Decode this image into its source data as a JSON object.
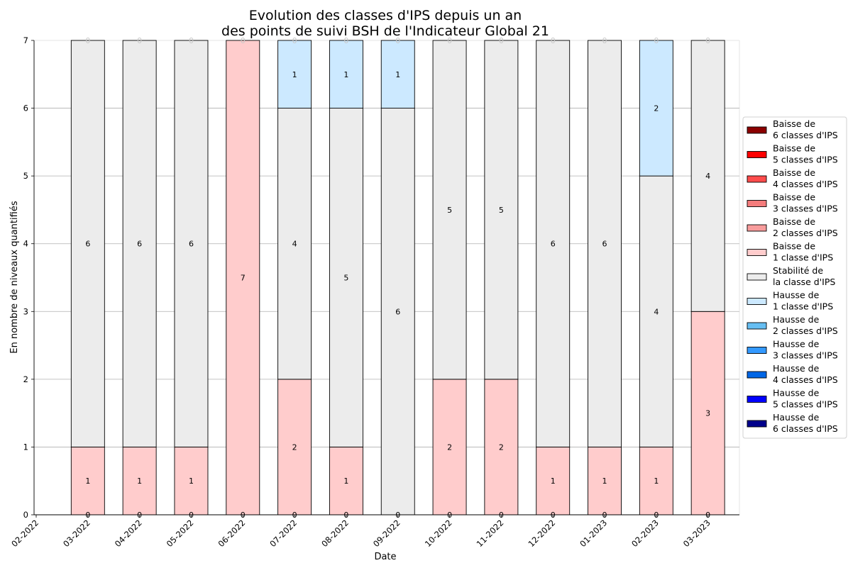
{
  "chart_data": {
    "type": "bar",
    "stacked": true,
    "title_lines": [
      "Evolution des classes d'IPS depuis un an",
      "des points de suivi BSH de l'Indicateur Global 21"
    ],
    "xlabel": "Date",
    "ylabel": "En nombre de niveaux quantifiés",
    "ylim": [
      0,
      7
    ],
    "yticks": [
      "0",
      "1",
      "2",
      "3",
      "4",
      "5",
      "6",
      "7"
    ],
    "grid": "horizontal",
    "legend_placement": "right",
    "x_tick_labels": [
      "02-2022",
      "03-2022",
      "04-2022",
      "05-2022",
      "06-2022",
      "07-2022",
      "08-2022",
      "09-2022",
      "10-2022",
      "11-2022",
      "12-2022",
      "01-2023",
      "02-2023",
      "03-2023"
    ],
    "categories": [
      "03-2022",
      "04-2022",
      "05-2022",
      "06-2022",
      "07-2022",
      "08-2022",
      "09-2022",
      "10-2022",
      "11-2022",
      "12-2022",
      "01-2023",
      "02-2023",
      "03-2023"
    ],
    "series": [
      {
        "name": "Baisse de\n6 classes d'IPS",
        "color": "#8b0000",
        "values": [
          0,
          0,
          0,
          0,
          0,
          0,
          0,
          0,
          0,
          0,
          0,
          0,
          0
        ]
      },
      {
        "name": "Baisse de\n5 classes d'IPS",
        "color": "#ff0000",
        "values": [
          0,
          0,
          0,
          0,
          0,
          0,
          0,
          0,
          0,
          0,
          0,
          0,
          0
        ]
      },
      {
        "name": "Baisse de\n4 classes d'IPS",
        "color": "#ff4c4c",
        "values": [
          0,
          0,
          0,
          0,
          0,
          0,
          0,
          0,
          0,
          0,
          0,
          0,
          0
        ]
      },
      {
        "name": "Baisse de\n3 classes d'IPS",
        "color": "#f47c7c",
        "values": [
          0,
          0,
          0,
          0,
          0,
          0,
          0,
          0,
          0,
          0,
          0,
          0,
          0
        ]
      },
      {
        "name": "Baisse de\n2 classes d'IPS",
        "color": "#f89c9c",
        "values": [
          0,
          0,
          0,
          0,
          0,
          0,
          0,
          0,
          0,
          0,
          0,
          0,
          0
        ]
      },
      {
        "name": "Baisse de\n1 classe d'IPS",
        "color": "#ffcccc",
        "values": [
          1,
          1,
          1,
          7,
          2,
          1,
          0,
          2,
          2,
          1,
          1,
          1,
          3
        ]
      },
      {
        "name": "Stabilité de\nla classe d'IPS",
        "color": "#ececec",
        "values": [
          6,
          6,
          6,
          0,
          4,
          5,
          6,
          5,
          5,
          6,
          6,
          4,
          4
        ]
      },
      {
        "name": "Hausse de\n1 classe d'IPS",
        "color": "#cce9ff",
        "values": [
          0,
          0,
          0,
          0,
          1,
          1,
          1,
          0,
          0,
          0,
          0,
          2,
          0
        ]
      },
      {
        "name": "Hausse de\n2 classes d'IPS",
        "color": "#66bef2",
        "values": [
          0,
          0,
          0,
          0,
          0,
          0,
          0,
          0,
          0,
          0,
          0,
          0,
          0
        ]
      },
      {
        "name": "Hausse de\n3 classes d'IPS",
        "color": "#3399ff",
        "values": [
          0,
          0,
          0,
          0,
          0,
          0,
          0,
          0,
          0,
          0,
          0,
          0,
          0
        ]
      },
      {
        "name": "Hausse de\n4 classes d'IPS",
        "color": "#0066e6",
        "values": [
          0,
          0,
          0,
          0,
          0,
          0,
          0,
          0,
          0,
          0,
          0,
          0,
          0
        ]
      },
      {
        "name": "Hausse de\n5 classes d'IPS",
        "color": "#0000ff",
        "values": [
          0,
          0,
          0,
          0,
          0,
          0,
          0,
          0,
          0,
          0,
          0,
          0,
          0
        ]
      },
      {
        "name": "Hausse de\n6 classes d'IPS",
        "color": "#00008b",
        "values": [
          0,
          0,
          0,
          0,
          0,
          0,
          0,
          0,
          0,
          0,
          0,
          0,
          0
        ]
      }
    ]
  }
}
